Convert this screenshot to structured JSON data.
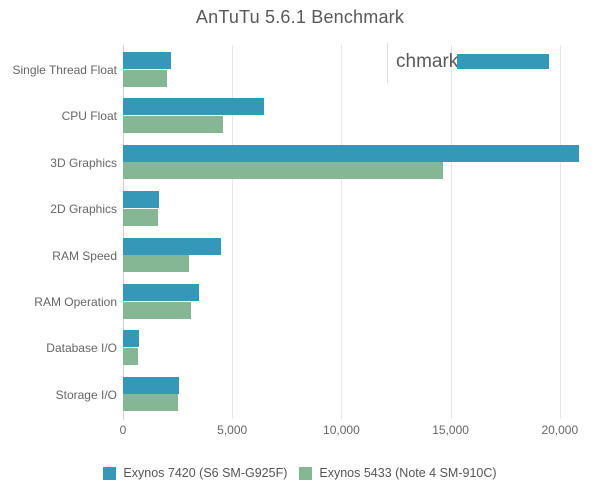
{
  "page": {
    "background": "#ffffff"
  },
  "chart_data": {
    "type": "bar",
    "orientation": "horizontal",
    "title": "AnTuTu 5.6.1 Benchmark",
    "categories": [
      "Single Thread Float",
      "CPU Float",
      "3D Graphics",
      "2D Graphics",
      "RAM Speed",
      "RAM Operation",
      "Database I/O",
      "Storage I/O"
    ],
    "series": [
      {
        "name": "Exynos 7420 (S6 SM-G925F)",
        "color": "#3598b8",
        "values": [
          2200,
          6450,
          20900,
          1650,
          4500,
          3500,
          750,
          2550
        ]
      },
      {
        "name": "Exynos 5433 (Note 4 SM-910C)",
        "color": "#86b795",
        "values": [
          2000,
          4600,
          14650,
          1600,
          3000,
          3100,
          670,
          2500
        ]
      }
    ],
    "xlabel": "",
    "ylabel": "",
    "xlim": [
      0,
      21000
    ],
    "x_ticks": [
      {
        "value": 0,
        "label": "0"
      },
      {
        "value": 5000,
        "label": "5,000"
      },
      {
        "value": 10000,
        "label": "10,000"
      },
      {
        "value": 15000,
        "label": "15,000"
      },
      {
        "value": 20000,
        "label": "20,000"
      }
    ],
    "grid": true,
    "legend_position": "bottom"
  },
  "artifact_overlay": {
    "text_fragment": "chmark"
  },
  "colors": {
    "title_text": "#595959",
    "axis_labels": "#666666",
    "legend_text": "#555555",
    "gridline": "#e6e6e6",
    "axis_line": "#cfcfcf",
    "series1": "#3598b8",
    "series2": "#86b795"
  }
}
